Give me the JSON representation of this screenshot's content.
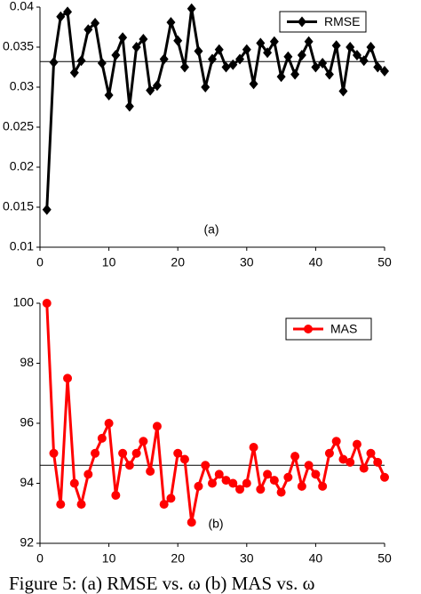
{
  "chart_data": [
    {
      "type": "line",
      "annotation": "(a)",
      "legend": "upper right",
      "marker": "diamond",
      "x": [
        1,
        2,
        3,
        4,
        5,
        6,
        7,
        8,
        9,
        10,
        11,
        12,
        13,
        14,
        15,
        16,
        17,
        18,
        19,
        20,
        21,
        22,
        23,
        24,
        25,
        26,
        27,
        28,
        29,
        30,
        31,
        32,
        33,
        34,
        35,
        36,
        37,
        38,
        39,
        40,
        41,
        42,
        43,
        44,
        45,
        46,
        47,
        48,
        49,
        50
      ],
      "series": [
        {
          "name": "RMSE",
          "color": "#000000",
          "values": [
            0.0147,
            0.0331,
            0.0388,
            0.0394,
            0.0318,
            0.0333,
            0.0372,
            0.038,
            0.033,
            0.029,
            0.034,
            0.0362,
            0.0276,
            0.035,
            0.036,
            0.0296,
            0.0302,
            0.0335,
            0.0381,
            0.0358,
            0.0325,
            0.0398,
            0.0345,
            0.03,
            0.0335,
            0.0347,
            0.0325,
            0.0328,
            0.0335,
            0.0347,
            0.0304,
            0.0355,
            0.0343,
            0.0357,
            0.0313,
            0.0338,
            0.0316,
            0.034,
            0.0357,
            0.0325,
            0.033,
            0.0316,
            0.0352,
            0.0295,
            0.035,
            0.034,
            0.0333,
            0.035,
            0.0325,
            0.032
          ]
        }
      ],
      "reference_line": 0.0332,
      "xlim": [
        0,
        50
      ],
      "xticks": [
        0,
        10,
        20,
        30,
        40,
        50
      ],
      "ylim": [
        0.01,
        0.04
      ],
      "yticks": [
        0.01,
        0.015,
        0.02,
        0.025,
        0.03,
        0.035,
        0.04
      ]
    },
    {
      "type": "line",
      "annotation": "(b)",
      "legend": "upper right",
      "marker": "circle",
      "x": [
        1,
        2,
        3,
        4,
        5,
        6,
        7,
        8,
        9,
        10,
        11,
        12,
        13,
        14,
        15,
        16,
        17,
        18,
        19,
        20,
        21,
        22,
        23,
        24,
        25,
        26,
        27,
        28,
        29,
        30,
        31,
        32,
        33,
        34,
        35,
        36,
        37,
        38,
        39,
        40,
        41,
        42,
        43,
        44,
        45,
        46,
        47,
        48,
        49,
        50
      ],
      "series": [
        {
          "name": "MAS",
          "color": "#ff0000",
          "values": [
            100,
            95.0,
            93.3,
            97.5,
            94.0,
            93.3,
            94.3,
            95.0,
            95.5,
            96.0,
            93.6,
            95.0,
            94.6,
            95.0,
            95.4,
            94.4,
            95.9,
            93.3,
            93.5,
            95.0,
            94.8,
            92.7,
            93.9,
            94.6,
            94.0,
            94.3,
            94.1,
            94.0,
            93.8,
            94.0,
            95.2,
            93.8,
            94.3,
            94.1,
            93.7,
            94.2,
            94.9,
            93.9,
            94.6,
            94.3,
            93.9,
            95.0,
            95.4,
            94.8,
            94.7,
            95.3,
            94.5,
            95.0,
            94.7,
            94.2
          ]
        }
      ],
      "reference_line": 94.6,
      "xlim": [
        0,
        50
      ],
      "xticks": [
        0,
        10,
        20,
        30,
        40,
        50
      ],
      "ylim": [
        92,
        100
      ],
      "yticks": [
        92,
        94,
        96,
        98,
        100
      ]
    }
  ],
  "caption": "Figure 5: (a) RMSE vs. ω (b) MAS vs. ω"
}
